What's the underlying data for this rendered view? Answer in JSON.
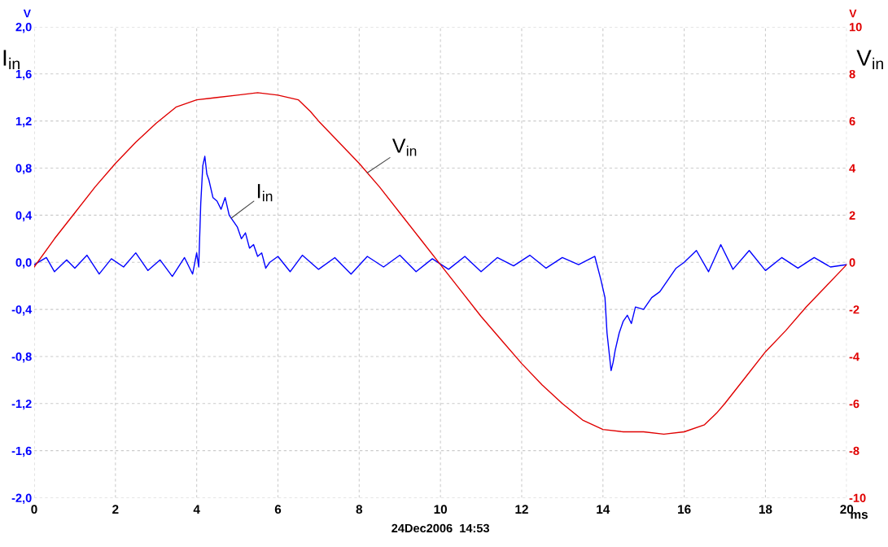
{
  "chart_data": {
    "type": "line",
    "xlabel": "ms",
    "ylabel": "I$_{in}$",
    "y2label": "V$_{in}$",
    "xlim": [
      0,
      20
    ],
    "xticks": [
      0,
      2,
      4,
      6,
      8,
      10,
      12,
      14,
      16,
      18,
      20
    ],
    "ylim": [
      -2.0,
      2.0
    ],
    "yticks": [
      {
        "value": -2.0,
        "label": "-2,0"
      },
      {
        "value": -1.6,
        "label": "-1,6"
      },
      {
        "value": -1.2,
        "label": "-1,2"
      },
      {
        "value": -0.8,
        "label": "-0,8"
      },
      {
        "value": -0.4,
        "label": "-0,4"
      },
      {
        "value": 0.0,
        "label": "0,0"
      },
      {
        "value": 0.4,
        "label": "0,4"
      },
      {
        "value": 0.8,
        "label": "0,8"
      },
      {
        "value": 1.2,
        "label": "1,2"
      },
      {
        "value": 1.6,
        "label": "1,6"
      },
      {
        "value": 2.0,
        "label": "2,0"
      }
    ],
    "y2lim": [
      -10,
      10
    ],
    "y2ticks": [
      -10,
      -8,
      -6,
      -4,
      -2,
      0,
      2,
      4,
      6,
      8,
      10
    ],
    "grid": true,
    "marker": "none",
    "line_style": "solid",
    "series": [
      {
        "name": "I$_{in}$",
        "color": "#0000ff",
        "x": [
          0,
          0.3,
          0.5,
          0.8,
          1.0,
          1.3,
          1.6,
          1.9,
          2.2,
          2.5,
          2.8,
          3.1,
          3.4,
          3.7,
          3.9,
          4.0,
          4.05,
          4.1,
          4.15,
          4.2,
          4.25,
          4.3,
          4.4,
          4.5,
          4.6,
          4.7,
          4.8,
          4.9,
          5.0,
          5.1,
          5.2,
          5.3,
          5.4,
          5.5,
          5.6,
          5.7,
          5.8,
          6.0,
          6.3,
          6.6,
          7.0,
          7.4,
          7.8,
          8.2,
          8.6,
          9.0,
          9.4,
          9.8,
          10.2,
          10.6,
          11.0,
          11.4,
          11.8,
          12.2,
          12.6,
          13.0,
          13.4,
          13.8,
          13.95,
          14.05,
          14.1,
          14.2,
          14.25,
          14.3,
          14.4,
          14.5,
          14.6,
          14.7,
          14.8,
          15.0,
          15.2,
          15.4,
          15.6,
          15.8,
          16.0,
          16.3,
          16.6,
          16.9,
          17.2,
          17.6,
          18.0,
          18.4,
          18.8,
          19.2,
          19.6,
          20.0
        ],
        "values": [
          -0.02,
          0.04,
          -0.08,
          0.02,
          -0.05,
          0.06,
          -0.1,
          0.03,
          -0.04,
          0.08,
          -0.07,
          0.02,
          -0.12,
          0.04,
          -0.1,
          0.08,
          -0.04,
          0.5,
          0.82,
          0.9,
          0.75,
          0.7,
          0.55,
          0.52,
          0.45,
          0.55,
          0.4,
          0.35,
          0.3,
          0.2,
          0.25,
          0.12,
          0.15,
          0.05,
          0.08,
          -0.05,
          0.0,
          0.05,
          -0.08,
          0.06,
          -0.06,
          0.04,
          -0.1,
          0.05,
          -0.04,
          0.06,
          -0.08,
          0.03,
          -0.06,
          0.05,
          -0.08,
          0.04,
          -0.03,
          0.06,
          -0.05,
          0.04,
          -0.02,
          0.05,
          -0.15,
          -0.3,
          -0.6,
          -0.92,
          -0.85,
          -0.75,
          -0.6,
          -0.5,
          -0.45,
          -0.52,
          -0.38,
          -0.4,
          -0.3,
          -0.25,
          -0.15,
          -0.05,
          0.0,
          0.1,
          -0.08,
          0.15,
          -0.06,
          0.1,
          -0.07,
          0.04,
          -0.05,
          0.04,
          -0.04,
          -0.02
        ]
      },
      {
        "name": "V$_{in}$",
        "color": "#e00000",
        "axis": "y2",
        "x": [
          0,
          0.5,
          1,
          1.5,
          2,
          2.5,
          3,
          3.5,
          4,
          4.5,
          5,
          5.5,
          6,
          6.5,
          6.8,
          7,
          7.5,
          8,
          8.5,
          9,
          9.5,
          10,
          10.5,
          11,
          11.5,
          12,
          12.5,
          13,
          13.5,
          14,
          14.5,
          15,
          15.5,
          16,
          16.5,
          16.8,
          17,
          17.5,
          18,
          18.5,
          19,
          19.5,
          20
        ],
        "values": [
          -0.2,
          1.0,
          2.1,
          3.2,
          4.2,
          5.1,
          5.9,
          6.6,
          6.9,
          7.0,
          7.1,
          7.2,
          7.1,
          6.9,
          6.4,
          6.0,
          5.1,
          4.2,
          3.2,
          2.1,
          1.0,
          -0.1,
          -1.2,
          -2.3,
          -3.3,
          -4.3,
          -5.2,
          -6.0,
          -6.7,
          -7.1,
          -7.2,
          -7.2,
          -7.3,
          -7.2,
          -6.9,
          -6.4,
          -6.0,
          -4.9,
          -3.8,
          -2.9,
          -1.9,
          -1.0,
          -0.1
        ]
      }
    ],
    "annotations": [
      "V",
      "V",
      "24Dec2006  14:53"
    ]
  }
}
